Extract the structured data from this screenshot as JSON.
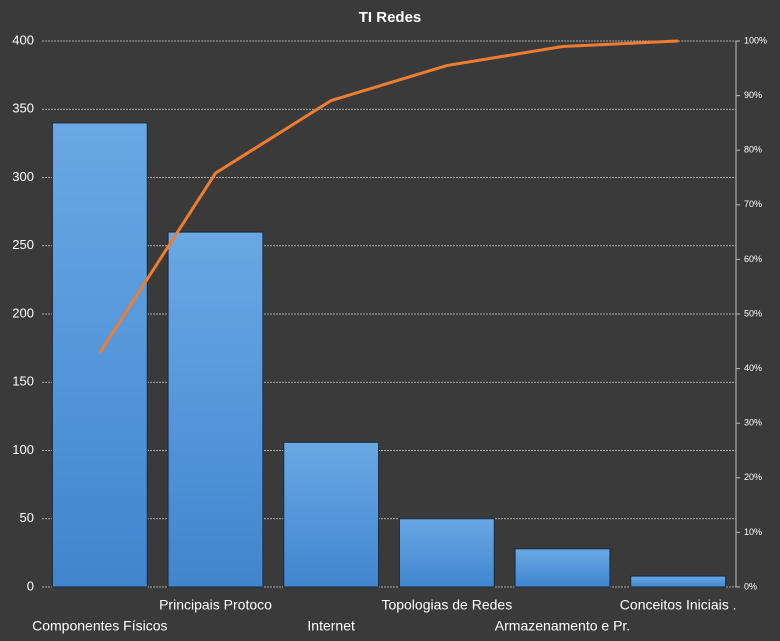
{
  "chart_data": {
    "type": "pareto",
    "title": "TI Redes",
    "categories": [
      "Componentes  Físicos",
      "Principais Protoco",
      "Internet",
      "Topologias de Redes",
      "Armazenamento  e Pr.",
      "Conceitos Iniciais ."
    ],
    "series": [
      {
        "type": "bar",
        "color": "#4d8fd6",
        "values": [
          340,
          260,
          106,
          50,
          28,
          8
        ]
      },
      {
        "type": "line",
        "color": "#ed7d31",
        "axis": "y2",
        "values": [
          42.9,
          75.8,
          89.1,
          95.5,
          99.0,
          100
        ]
      }
    ],
    "ylim": [
      0,
      400
    ],
    "yticks": [
      0,
      50,
      100,
      150,
      200,
      250,
      300,
      350,
      400
    ],
    "y2lim": [
      0,
      100
    ],
    "y2ticks": [
      {
        "value": 0,
        "label": "0%"
      },
      {
        "value": 10,
        "label": "10%"
      },
      {
        "value": 20,
        "label": "20%"
      },
      {
        "value": 30,
        "label": "30%"
      },
      {
        "value": 40,
        "label": "40%"
      },
      {
        "value": 50,
        "label": "50%"
      },
      {
        "value": 60,
        "label": "60%"
      },
      {
        "value": 70,
        "label": "70%"
      },
      {
        "value": 80,
        "label": "80%"
      },
      {
        "value": 90,
        "label": "90%"
      },
      {
        "value": 100,
        "label": "100%"
      }
    ],
    "grid": true
  }
}
